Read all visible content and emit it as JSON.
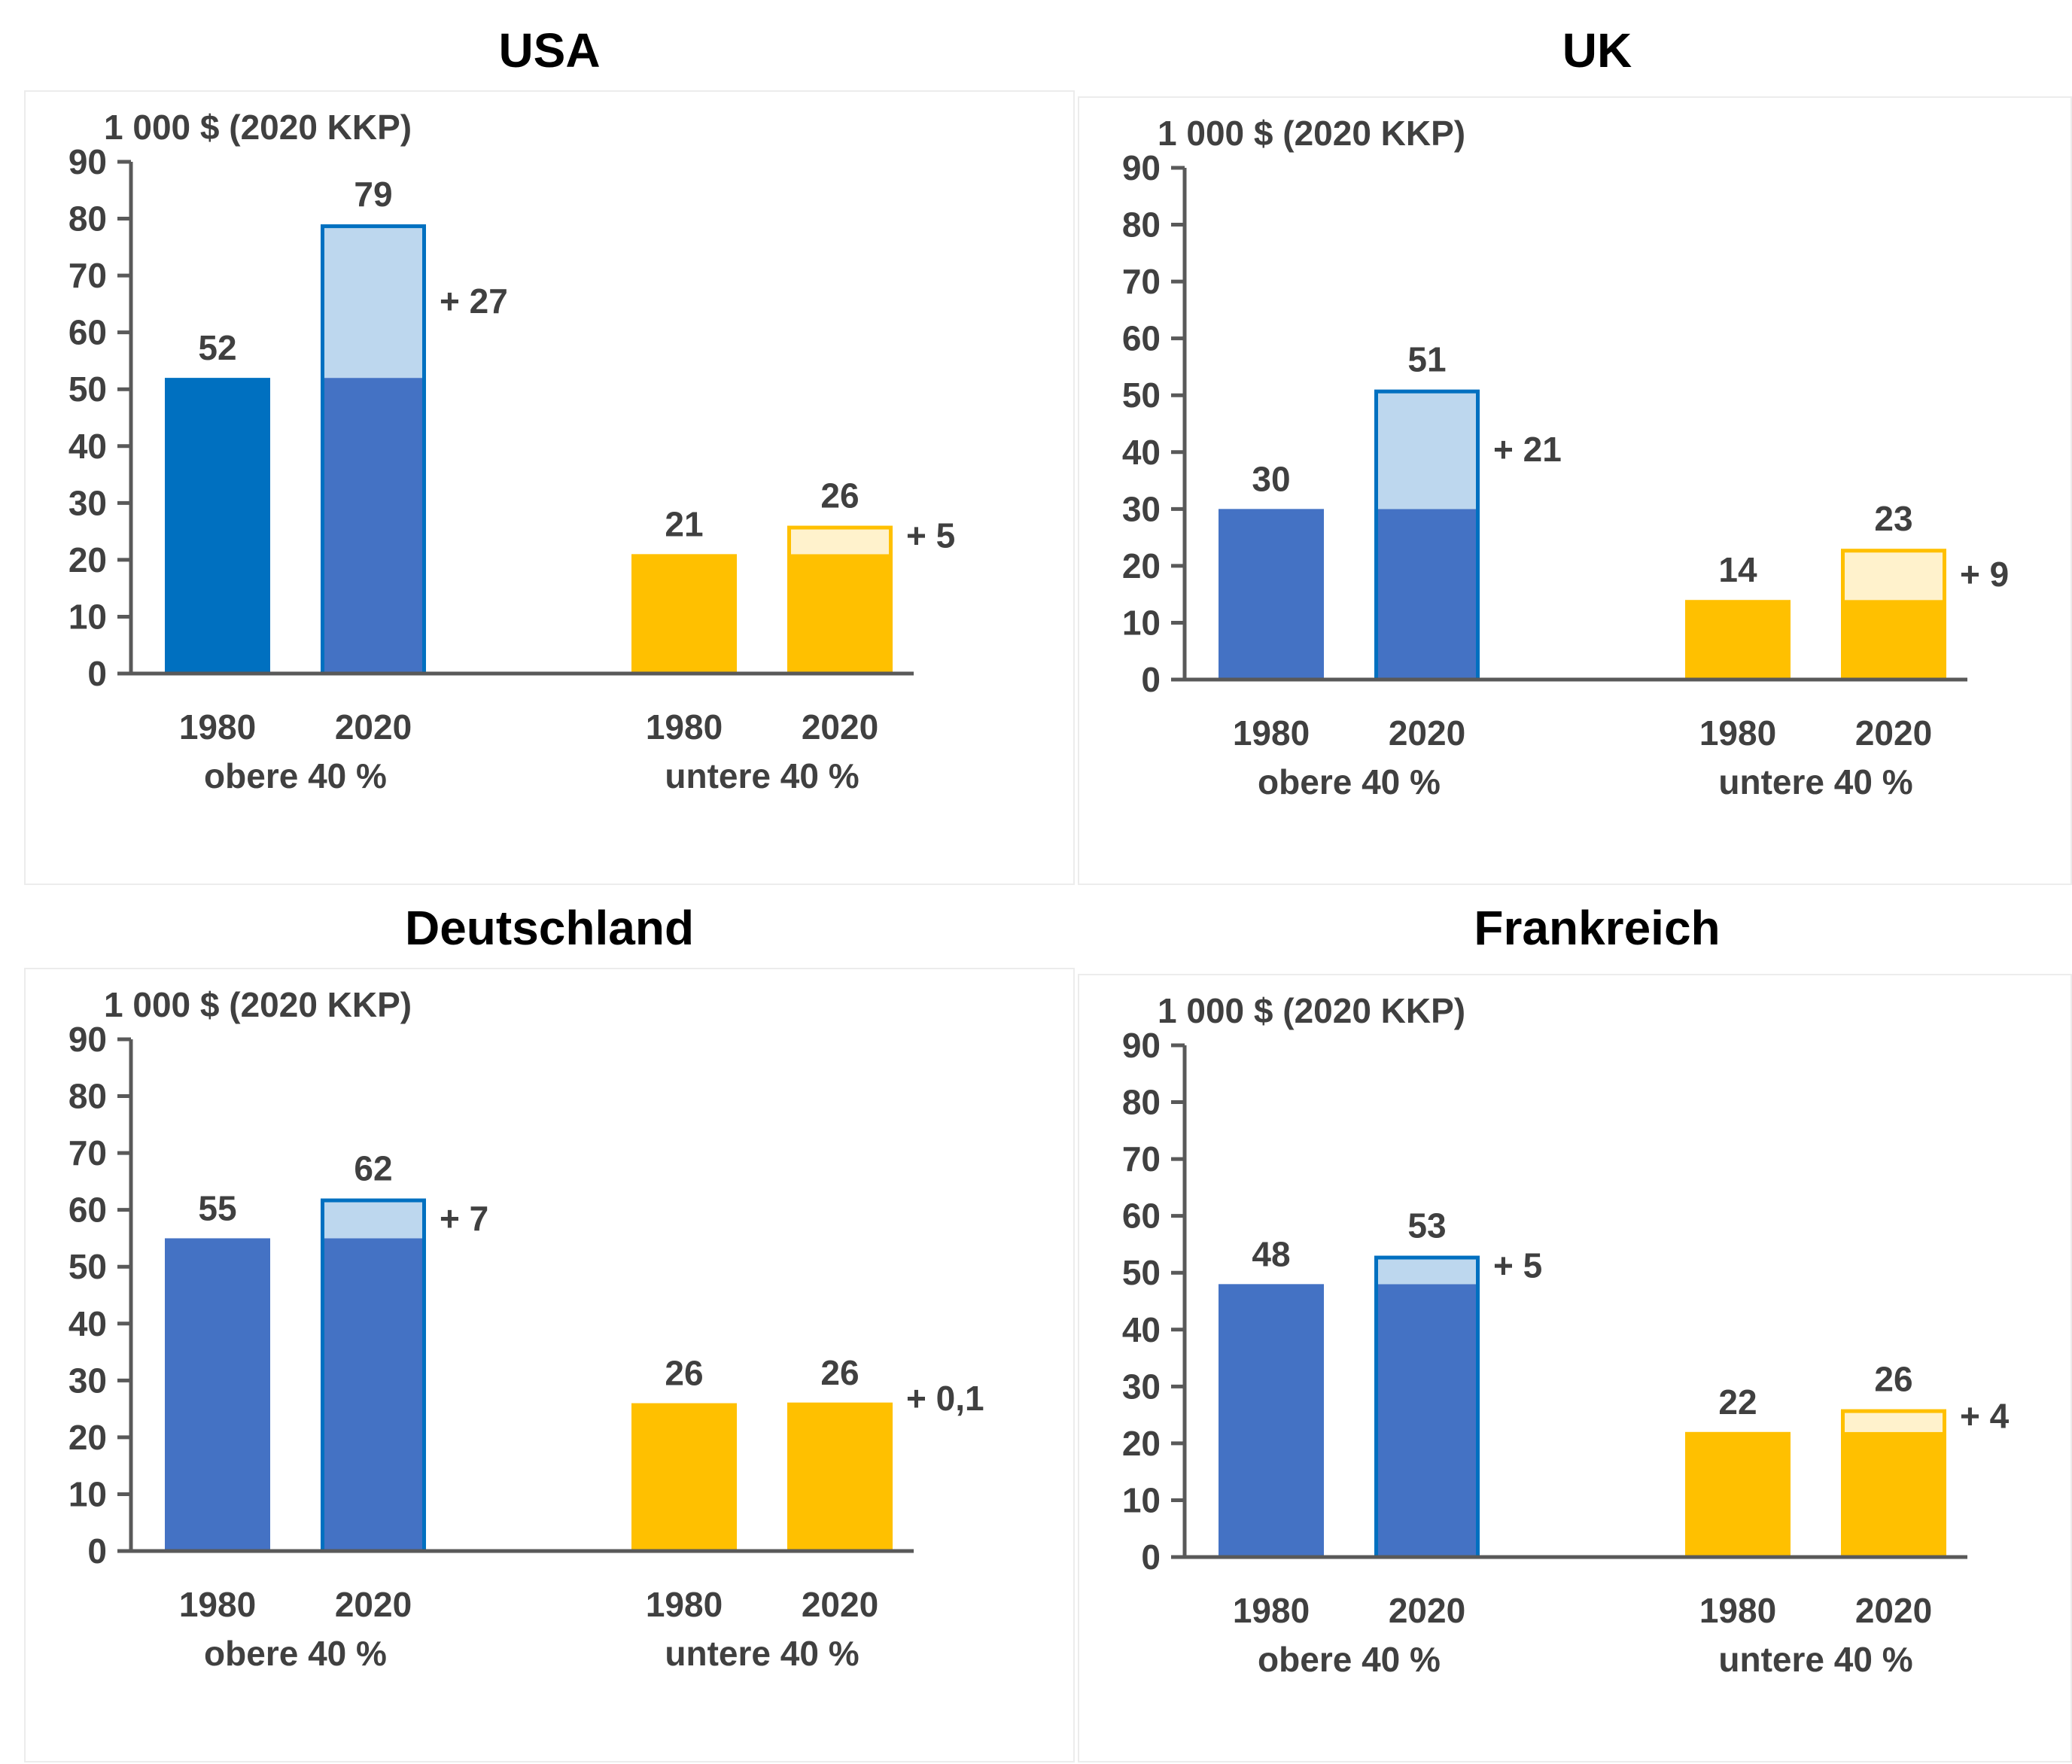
{
  "colors": {
    "blue_dark": "#0070C0",
    "blue": "#4472C4",
    "blue_light": "#BDD7EE",
    "blue_outline": "#0070C0",
    "yellow": "#FFC000",
    "yellow_light": "#FFF2CC",
    "axis": "#595959",
    "text": "#404040"
  },
  "chart_data": [
    {
      "type": "bar",
      "title": "USA",
      "ylabel": "1 000 $ (2020 KKP)",
      "ylim": [
        0,
        90
      ],
      "yticks": [
        0,
        10,
        20,
        30,
        40,
        50,
        60,
        70,
        80,
        90
      ],
      "groups": [
        {
          "label": "obere 40 %",
          "bars": [
            {
              "year": "1980",
              "value": 52,
              "value_label": "52",
              "fill": "blue_dark"
            },
            {
              "year": "2020",
              "value": 79,
              "base": 52,
              "value_label": "79",
              "delta_label": "+ 27",
              "fill": "blue",
              "increment_fill": "blue_light"
            }
          ]
        },
        {
          "label": "untere 40 %",
          "bars": [
            {
              "year": "1980",
              "value": 21,
              "value_label": "21",
              "fill": "yellow"
            },
            {
              "year": "2020",
              "value": 26,
              "base": 21,
              "value_label": "26",
              "delta_label": "+ 5",
              "fill": "yellow",
              "increment_fill": "yellow_light"
            }
          ]
        }
      ]
    },
    {
      "type": "bar",
      "title": "UK",
      "ylabel": "1 000 $ (2020 KKP)",
      "ylim": [
        0,
        90
      ],
      "yticks": [
        0,
        10,
        20,
        30,
        40,
        50,
        60,
        70,
        80,
        90
      ],
      "groups": [
        {
          "label": "obere 40 %",
          "bars": [
            {
              "year": "1980",
              "value": 30,
              "value_label": "30",
              "fill": "blue"
            },
            {
              "year": "2020",
              "value": 51,
              "base": 30,
              "value_label": "51",
              "delta_label": "+ 21",
              "fill": "blue",
              "increment_fill": "blue_light"
            }
          ]
        },
        {
          "label": "untere 40 %",
          "bars": [
            {
              "year": "1980",
              "value": 14,
              "value_label": "14",
              "fill": "yellow"
            },
            {
              "year": "2020",
              "value": 23,
              "base": 14,
              "value_label": "23",
              "delta_label": "+ 9",
              "fill": "yellow",
              "increment_fill": "yellow_light"
            }
          ]
        }
      ]
    },
    {
      "type": "bar",
      "title": "Deutschland",
      "ylabel": "1 000 $ (2020 KKP)",
      "ylim": [
        0,
        90
      ],
      "yticks": [
        0,
        10,
        20,
        30,
        40,
        50,
        60,
        70,
        80,
        90
      ],
      "groups": [
        {
          "label": "obere 40 %",
          "bars": [
            {
              "year": "1980",
              "value": 55,
              "value_label": "55",
              "fill": "blue"
            },
            {
              "year": "2020",
              "value": 62,
              "base": 55,
              "value_label": "62",
              "delta_label": "+ 7",
              "fill": "blue",
              "increment_fill": "blue_light"
            }
          ]
        },
        {
          "label": "untere 40 %",
          "bars": [
            {
              "year": "1980",
              "value": 26,
              "value_label": "26",
              "fill": "yellow"
            },
            {
              "year": "2020",
              "value": 26.1,
              "base": 26,
              "value_label": "26",
              "delta_label": "+ 0,1",
              "fill": "yellow",
              "increment_fill": "yellow"
            }
          ]
        }
      ]
    },
    {
      "type": "bar",
      "title": "Frankreich",
      "ylabel": "1 000 $ (2020 KKP)",
      "ylim": [
        0,
        90
      ],
      "yticks": [
        0,
        10,
        20,
        30,
        40,
        50,
        60,
        70,
        80,
        90
      ],
      "groups": [
        {
          "label": "obere 40 %",
          "bars": [
            {
              "year": "1980",
              "value": 48,
              "value_label": "48",
              "fill": "blue"
            },
            {
              "year": "2020",
              "value": 53,
              "base": 48,
              "value_label": "53",
              "delta_label": "+ 5",
              "fill": "blue",
              "increment_fill": "blue_light"
            }
          ]
        },
        {
          "label": "untere 40 %",
          "bars": [
            {
              "year": "1980",
              "value": 22,
              "value_label": "22",
              "fill": "yellow"
            },
            {
              "year": "2020",
              "value": 26,
              "base": 22,
              "value_label": "26",
              "delta_label": "+ 4",
              "fill": "yellow",
              "increment_fill": "yellow_light"
            }
          ]
        }
      ]
    }
  ]
}
